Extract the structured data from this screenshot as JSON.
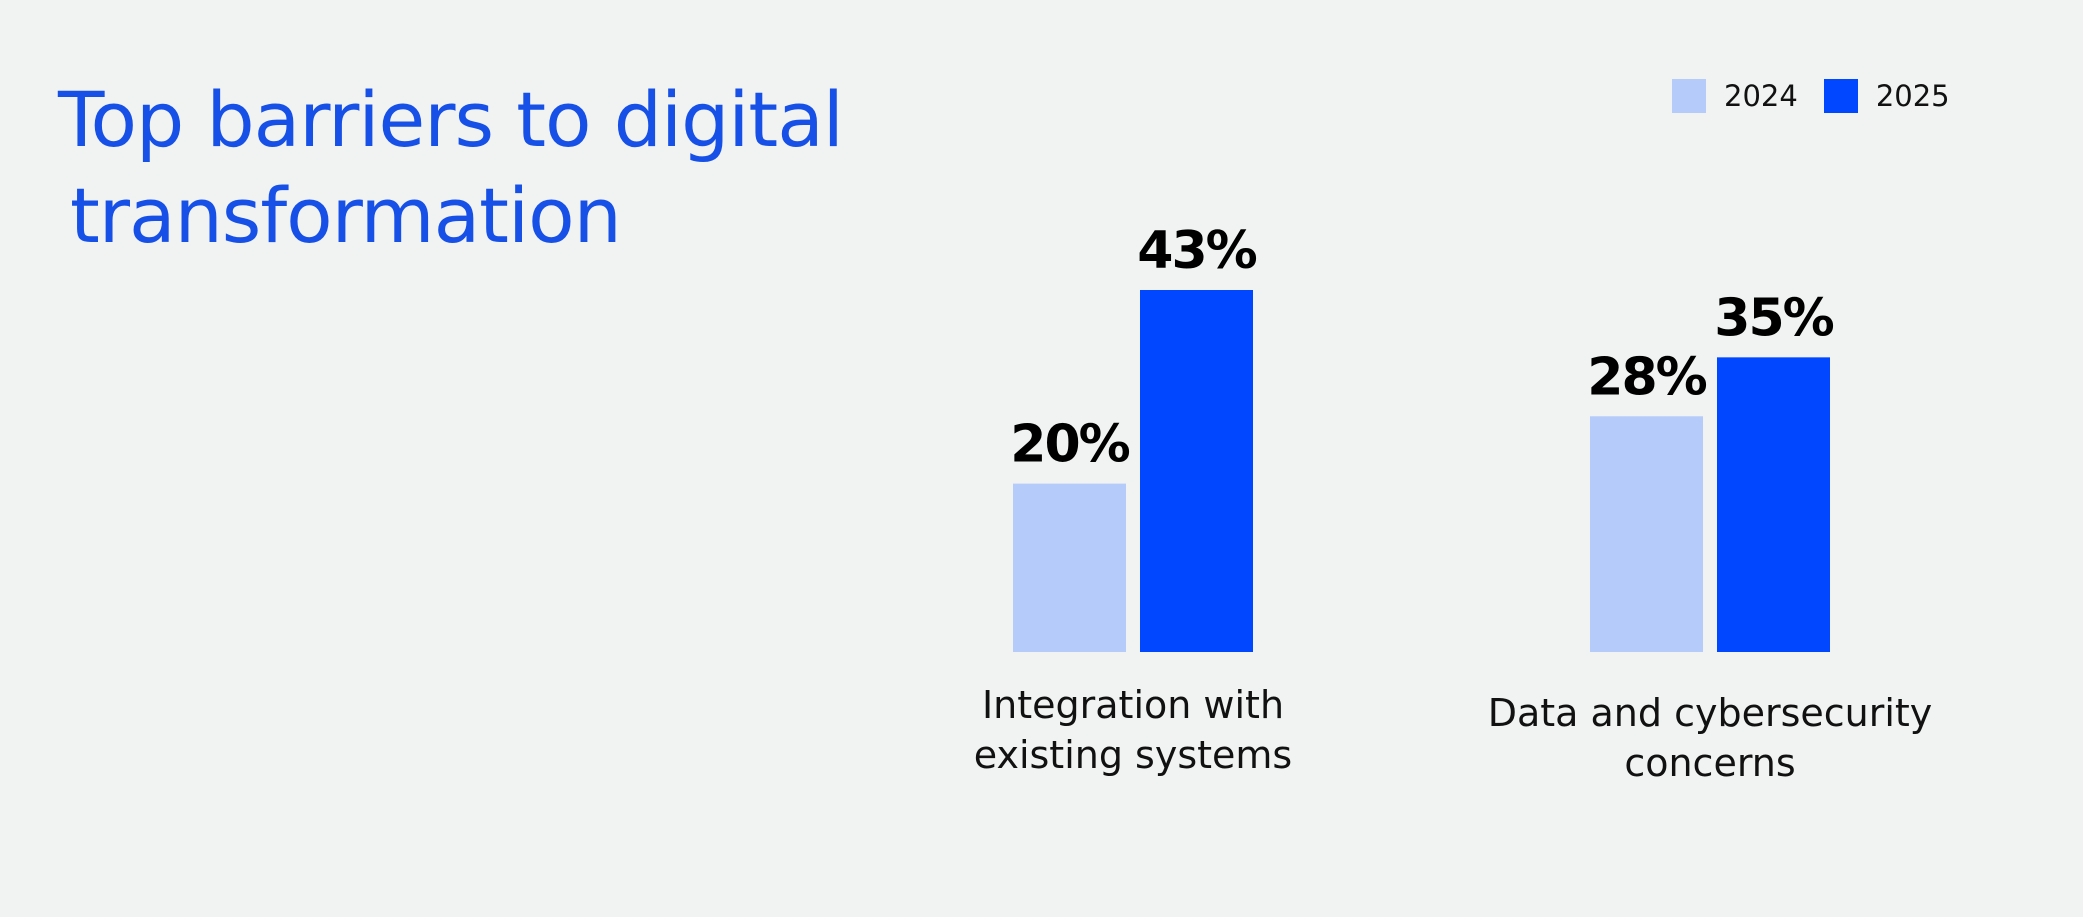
{
  "title_lines": [
    "Top barriers to digital",
    "transformation"
  ],
  "colors": {
    "background": "#f1f3f3",
    "title": "#1650e6",
    "series_2024": "#b5cbfa",
    "series_2025": "#0047ff"
  },
  "legend": [
    {
      "label": "2024",
      "color": "#b5cbfa"
    },
    {
      "label": "2025",
      "color": "#0047ff"
    }
  ],
  "chart_data": {
    "type": "bar",
    "title": "Top barriers to digital transformation",
    "categories": [
      [
        "Integration with",
        "existing systems"
      ],
      [
        "Data and cybersecurity",
        "concerns"
      ]
    ],
    "series": [
      {
        "name": "2024",
        "values": [
          20,
          28
        ],
        "labels": [
          "20%",
          "28%"
        ],
        "color": "#b5cbfa"
      },
      {
        "name": "2025",
        "values": [
          43,
          35
        ],
        "labels": [
          "43%",
          "35%"
        ],
        "color": "#0047ff"
      }
    ],
    "xlabel": "",
    "ylabel": "",
    "ylim": [
      0,
      43
    ],
    "grid": false,
    "legend_position": "top-right"
  }
}
